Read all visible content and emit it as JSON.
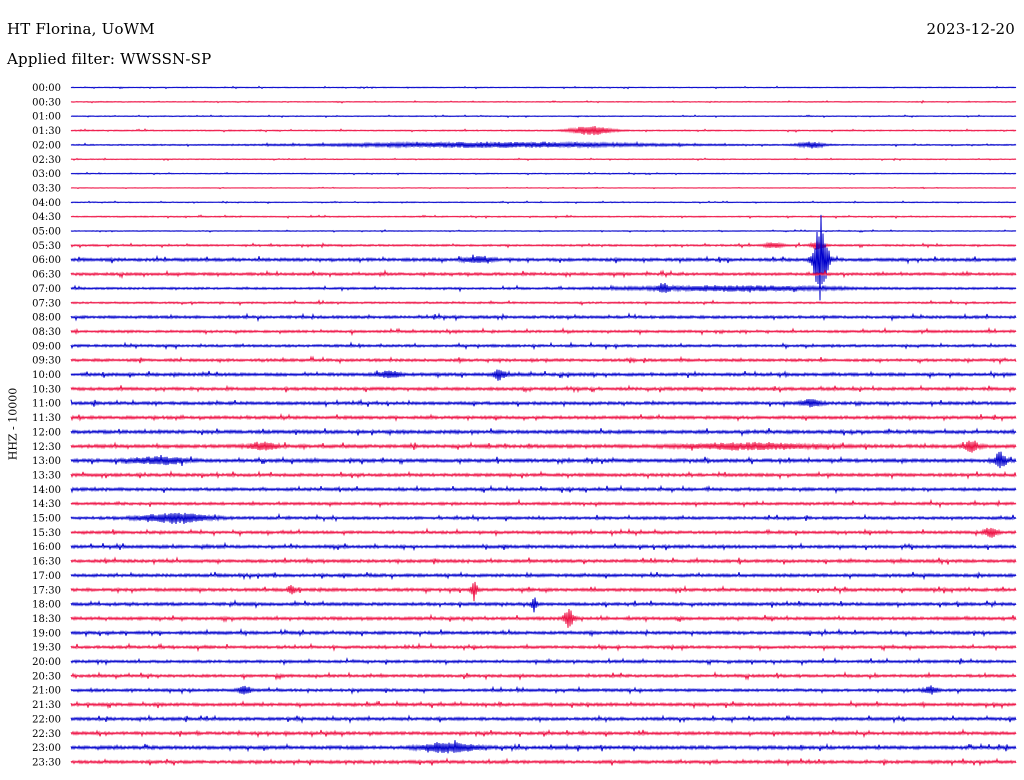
{
  "header": {
    "station": "HT Florina, UoWM",
    "date": "2023-12-20",
    "filter_text": "Applied filter: WWSSN-SP"
  },
  "chart_data": {
    "type": "line",
    "subtype": "helicorder",
    "title": "HT Florina, UoWM",
    "date": "2023-12-20",
    "filter": "Applied filter: WWSSN-SP",
    "ylabel": "HHZ - 10000",
    "xlabel": "",
    "row_interval_minutes": 30,
    "trace_colors": [
      "#0000cc",
      "#ee1144"
    ],
    "row_labels": [
      "00:00",
      "00:30",
      "01:00",
      "01:30",
      "02:00",
      "02:30",
      "03:00",
      "03:30",
      "04:00",
      "04:30",
      "05:00",
      "05:30",
      "06:00",
      "06:30",
      "07:00",
      "07:30",
      "08:00",
      "08:30",
      "09:00",
      "09:30",
      "10:00",
      "10:30",
      "11:00",
      "11:30",
      "12:00",
      "12:30",
      "13:00",
      "13:30",
      "14:00",
      "14:30",
      "15:00",
      "15:30",
      "16:00",
      "16:30",
      "17:00",
      "17:30",
      "18:00",
      "18:30",
      "19:00",
      "19:30",
      "20:00",
      "20:30",
      "21:00",
      "21:30",
      "22:00",
      "22:30",
      "23:00",
      "23:30"
    ],
    "noise_level": [
      0.3,
      0.3,
      0.3,
      0.4,
      0.4,
      0.3,
      0.3,
      0.2,
      0.3,
      0.4,
      0.3,
      0.6,
      1.0,
      0.9,
      0.7,
      0.6,
      0.9,
      0.8,
      0.8,
      0.9,
      1.0,
      1.0,
      1.0,
      1.0,
      1.1,
      1.1,
      1.1,
      1.0,
      1.0,
      0.9,
      0.9,
      0.9,
      1.0,
      1.0,
      1.0,
      1.0,
      1.0,
      1.0,
      1.0,
      0.9,
      0.9,
      0.9,
      0.9,
      1.0,
      1.0,
      1.0,
      1.1,
      1.0
    ],
    "events": [
      {
        "row": "01:30",
        "minute": 16.5,
        "amplitude": 4.5,
        "duration": 0.6
      },
      {
        "row": "02:00",
        "minute": 13.5,
        "amplitude": 2.5,
        "duration": 5.0
      },
      {
        "row": "02:00",
        "minute": 23.5,
        "amplitude": 3.0,
        "duration": 0.4
      },
      {
        "row": "05:30",
        "minute": 22.3,
        "amplitude": 2.5,
        "duration": 0.3
      },
      {
        "row": "05:30",
        "minute": 23.7,
        "amplitude": 4.0,
        "duration": 0.2
      },
      {
        "row": "06:00",
        "minute": 23.8,
        "amplitude": 45.0,
        "duration": 0.2
      },
      {
        "row": "06:00",
        "minute": 12.9,
        "amplitude": 3.0,
        "duration": 0.4
      },
      {
        "row": "07:00",
        "minute": 18.8,
        "amplitude": 4.0,
        "duration": 0.15
      },
      {
        "row": "07:00",
        "minute": 21.0,
        "amplitude": 2.5,
        "duration": 3.0
      },
      {
        "row": "10:00",
        "minute": 10.1,
        "amplitude": 4.0,
        "duration": 0.3
      },
      {
        "row": "10:00",
        "minute": 13.6,
        "amplitude": 5.0,
        "duration": 0.2
      },
      {
        "row": "11:00",
        "minute": 23.5,
        "amplitude": 3.5,
        "duration": 0.3
      },
      {
        "row": "12:30",
        "minute": 6.1,
        "amplitude": 4.0,
        "duration": 0.4
      },
      {
        "row": "12:30",
        "minute": 21.5,
        "amplitude": 3.0,
        "duration": 2.0
      },
      {
        "row": "12:30",
        "minute": 28.6,
        "amplitude": 6.0,
        "duration": 0.2
      },
      {
        "row": "13:00",
        "minute": 2.8,
        "amplitude": 3.5,
        "duration": 0.8
      },
      {
        "row": "13:00",
        "minute": 29.5,
        "amplitude": 8.0,
        "duration": 0.2
      },
      {
        "row": "15:00",
        "minute": 3.3,
        "amplitude": 5.0,
        "duration": 1.0
      },
      {
        "row": "15:30",
        "minute": 29.2,
        "amplitude": 5.0,
        "duration": 0.2
      },
      {
        "row": "17:30",
        "minute": 7.0,
        "amplitude": 5.0,
        "duration": 0.1
      },
      {
        "row": "17:30",
        "minute": 12.8,
        "amplitude": 9.0,
        "duration": 0.1
      },
      {
        "row": "18:00",
        "minute": 14.7,
        "amplitude": 8.0,
        "duration": 0.05
      },
      {
        "row": "18:30",
        "minute": 15.8,
        "amplitude": 9.0,
        "duration": 0.15
      },
      {
        "row": "21:00",
        "minute": 5.5,
        "amplitude": 4.0,
        "duration": 0.2
      },
      {
        "row": "21:00",
        "minute": 27.3,
        "amplitude": 4.0,
        "duration": 0.2
      },
      {
        "row": "23:00",
        "minute": 12.0,
        "amplitude": 5.0,
        "duration": 0.8
      }
    ]
  }
}
